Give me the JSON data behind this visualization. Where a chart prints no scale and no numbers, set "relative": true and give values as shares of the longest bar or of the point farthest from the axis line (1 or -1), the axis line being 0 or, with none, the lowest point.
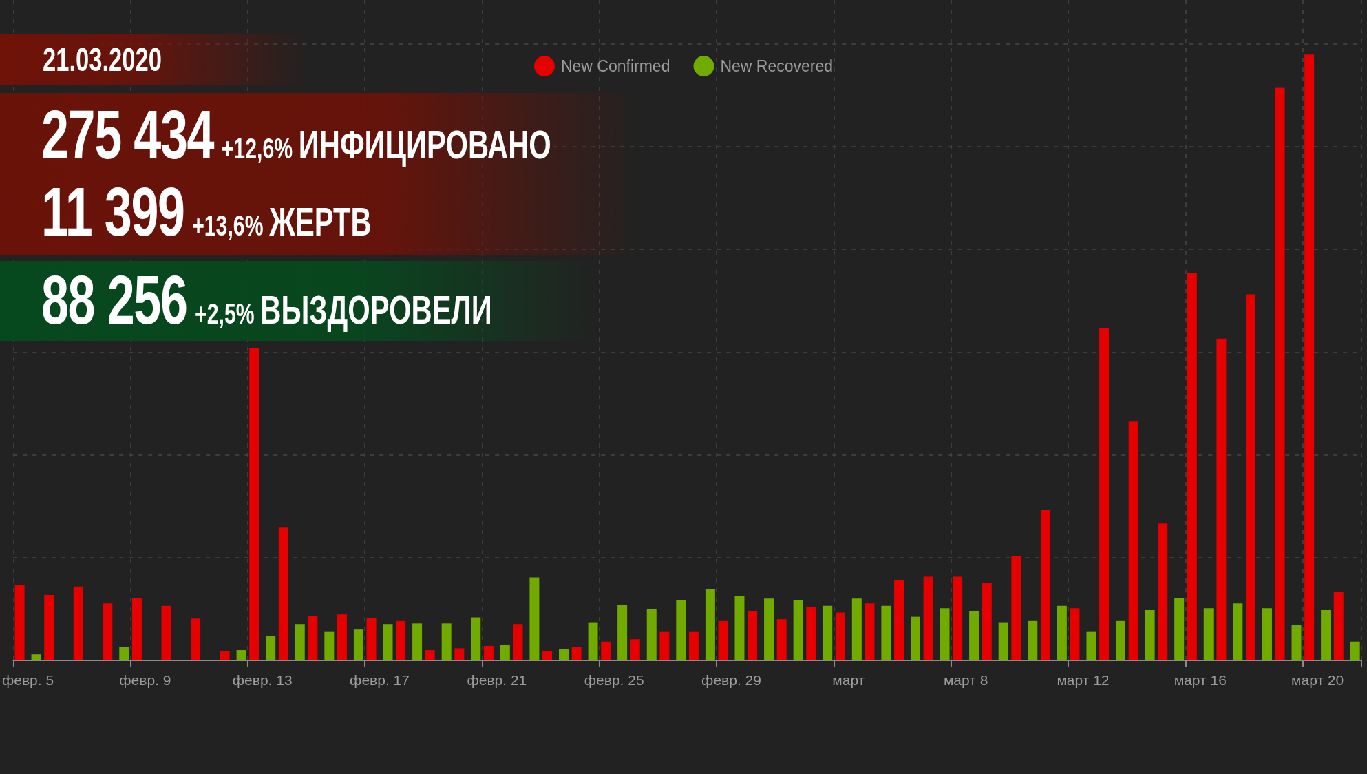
{
  "chart_data": {
    "type": "bar",
    "title": "21.03.2020",
    "categories": [
      "февр. 5",
      null,
      null,
      null,
      "февр. 9",
      null,
      null,
      null,
      "февр. 13",
      null,
      null,
      null,
      "февр. 17",
      null,
      null,
      null,
      "февр. 21",
      null,
      null,
      null,
      "февр. 25",
      null,
      null,
      null,
      "февр. 29",
      null,
      null,
      null,
      "март",
      null,
      null,
      null,
      "март 8",
      null,
      null,
      null,
      "март 12",
      null,
      null,
      null,
      "март 16",
      null,
      null,
      null,
      "март 20",
      null
    ],
    "series": [
      {
        "name": "New Confirmed",
        "color": "#e60000",
        "values": [
          0.124,
          0.108,
          0.122,
          0.094,
          0.103,
          0.09,
          0.069,
          0.015,
          0.515,
          0.219,
          0.074,
          0.076,
          0.07,
          0.065,
          0.017,
          0.02,
          0.024,
          0.06,
          0.015,
          0.022,
          0.031,
          0.035,
          0.047,
          0.047,
          0.065,
          0.081,
          0.068,
          0.088,
          0.079,
          0.094,
          0.133,
          0.138,
          0.138,
          0.128,
          0.172,
          0.249,
          0.086,
          0.549,
          0.394,
          0.226,
          0.64,
          0.531,
          0.604,
          0.945,
          1,
          0.113
        ]
      },
      {
        "name": "New Recovered",
        "color": "#72ab00",
        "values": [
          0.01,
          null,
          null,
          0.022,
          null,
          null,
          null,
          0.017,
          0.04,
          0.06,
          0.047,
          0.051,
          0.06,
          0.061,
          0.061,
          0.071,
          0.026,
          0.137,
          0.019,
          0.063,
          0.092,
          0.085,
          0.099,
          0.117,
          0.106,
          0.102,
          0.099,
          0.09,
          0.102,
          0.09,
          0.072,
          0.086,
          0.081,
          0.063,
          0.065,
          0.09,
          0.047,
          0.065,
          0.083,
          0.103,
          0.086,
          0.094,
          0.086,
          0.059,
          0.083,
          0.031
        ]
      }
    ],
    "relative": true,
    "grid": true,
    "legend": "top",
    "annotations": [
      "275 434",
      "+12,6%",
      "ИНФИЦИРОВАНО",
      "11 399",
      "+13,6%",
      "ЖЕРТВ",
      "88 256",
      "+2,5%",
      "ВЫЗДОРОВЕЛИ"
    ]
  }
}
